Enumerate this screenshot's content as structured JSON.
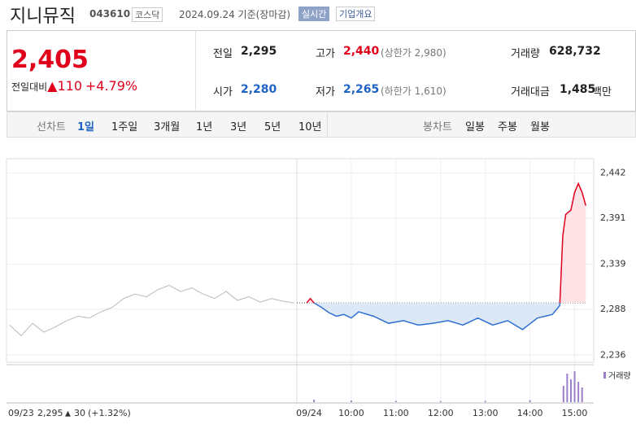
{
  "header": {
    "name": "지니뮤직",
    "code": "043610",
    "market": "코스닥",
    "date": "2024.09.24",
    "basis": "기준(장마감)",
    "realtime": "실시간",
    "company_info": "기업개요"
  },
  "quote": {
    "price": "2,405",
    "change_label": "전일대비",
    "change": "110",
    "change_pct": "+4.79%"
  },
  "stats": [
    {
      "label": "전일",
      "value": "2,295"
    },
    {
      "label": "고가",
      "value": "2,440",
      "note": "(상한가 2,980)"
    },
    {
      "label": "거래량",
      "value": "628,732"
    },
    {
      "label": "시가",
      "value": "2,280"
    },
    {
      "label": "저가",
      "value": "2,265",
      "note": "(하한가 1,610)"
    },
    {
      "label": "거래대금",
      "value": "1,485",
      "unit": "백만"
    }
  ],
  "tabs": {
    "line_chart": "선차트",
    "periods": [
      "1일",
      "1주일",
      "3개월",
      "1년",
      "3년",
      "5년",
      "10년"
    ],
    "candle_chart": "봉차트",
    "candle_periods": [
      "일봉",
      "주봉",
      "월봉"
    ]
  },
  "chart_data": {
    "type": "line",
    "ylim": [
      2228,
      2458
    ],
    "yticks": [
      {
        "value": 2442,
        "label": "2,442"
      },
      {
        "value": 2391,
        "label": "2,391"
      },
      {
        "value": 2339,
        "label": "2,339"
      },
      {
        "value": 2288,
        "label": "2,288"
      },
      {
        "value": 2236,
        "label": "2,236"
      }
    ],
    "reference": 2295,
    "prev_day": {
      "date": "09/23",
      "close": "2,295",
      "change": "30",
      "change_pct": "(+1.32%)",
      "values": [
        2270,
        2258,
        2272,
        2262,
        2268,
        2275,
        2280,
        2278,
        2285,
        2290,
        2300,
        2305,
        2302,
        2310,
        2315,
        2308,
        2312,
        2305,
        2300,
        2308,
        2298,
        2302,
        2296,
        2300,
        2297,
        2295
      ]
    },
    "today_label": "09/24",
    "xlim": [
      "09:00",
      "15:30"
    ],
    "xticks": [
      "10:00",
      "11:00",
      "12:00",
      "13:00",
      "14:00",
      "15:00"
    ],
    "x": [
      "09:00",
      "09:05",
      "09:10",
      "09:20",
      "09:30",
      "09:40",
      "09:50",
      "10:00",
      "10:10",
      "10:30",
      "10:50",
      "11:10",
      "11:30",
      "11:50",
      "12:10",
      "12:30",
      "12:50",
      "13:10",
      "13:30",
      "13:50",
      "14:10",
      "14:30",
      "14:40",
      "14:42",
      "14:44",
      "14:48",
      "14:55",
      "15:00",
      "15:05",
      "15:10",
      "15:15"
    ],
    "values": [
      2295,
      2300,
      2295,
      2290,
      2284,
      2280,
      2282,
      2278,
      2285,
      2280,
      2272,
      2275,
      2270,
      2272,
      2275,
      2270,
      2278,
      2270,
      2275,
      2265,
      2278,
      2282,
      2292,
      2330,
      2370,
      2395,
      2400,
      2420,
      2430,
      2420,
      2405
    ],
    "volume_label": "거래량",
    "volume": {
      "x": [
        "09:10",
        "10:00",
        "11:00",
        "12:00",
        "13:00",
        "14:00",
        "14:45",
        "14:50",
        "14:55",
        "15:00",
        "15:05",
        "15:10"
      ],
      "values": [
        3000,
        2000,
        1500,
        1200,
        1500,
        2500,
        20000,
        35000,
        28000,
        38000,
        25000,
        18000
      ],
      "ylim": [
        0,
        40000
      ]
    }
  }
}
